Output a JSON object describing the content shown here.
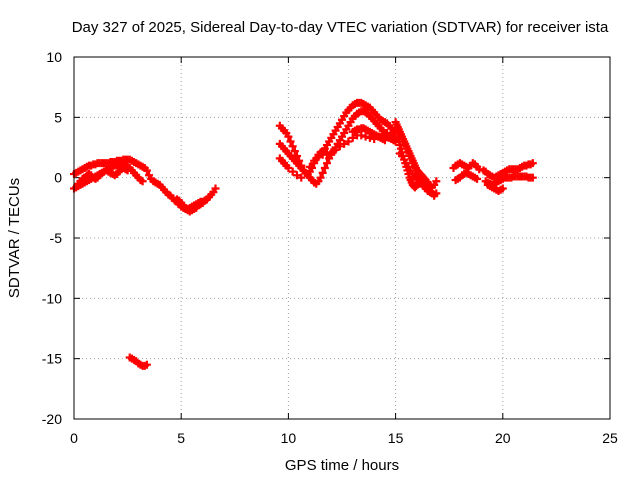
{
  "chart_data": {
    "type": "scatter",
    "title": "Day 327 of 2025, Sidereal Day-to-day VTEC variation (SDTVAR) for receiver ista",
    "xlabel": "GPS time / hours",
    "ylabel": "SDTVAR / TECUs",
    "xlim": [
      0,
      25
    ],
    "ylim": [
      -20,
      10
    ],
    "xticks": [
      "0",
      "5",
      "10",
      "15",
      "20",
      "25"
    ],
    "yticks": [
      "10",
      "5",
      "0",
      "-5",
      "-10",
      "-15",
      "-20"
    ],
    "grid": true,
    "marker": "+",
    "color": "#ff0000",
    "series": [
      {
        "x": [
          0.0,
          0.1,
          0.2,
          0.3,
          0.4,
          0.5,
          0.6,
          0.7,
          0.8,
          0.9,
          1.0,
          1.1,
          1.2,
          1.3,
          1.4,
          1.5,
          1.6,
          1.7,
          1.8,
          1.9,
          2.0,
          2.1,
          2.2,
          2.3,
          2.4,
          2.5,
          2.6,
          2.7,
          2.8,
          2.9,
          3.0,
          3.1,
          3.2,
          3.3,
          3.4,
          0.0,
          0.1,
          0.2,
          0.3,
          0.4,
          0.5,
          0.6,
          0.7,
          0.8,
          0.9,
          1.0,
          1.1,
          1.2,
          1.3,
          1.4,
          1.5,
          1.6,
          1.7,
          1.8,
          1.9,
          2.0,
          2.1,
          2.2,
          2.3,
          2.4,
          2.5,
          2.6,
          2.7,
          2.8,
          2.9,
          3.0,
          3.1,
          3.2,
          0.2,
          0.3,
          0.4,
          0.5,
          0.6,
          0.7,
          0.8,
          0.9,
          1.0,
          1.1,
          1.2,
          1.3,
          1.4,
          1.5,
          1.6,
          1.7,
          1.8,
          1.9,
          2.0,
          2.1,
          2.2,
          2.3,
          2.4,
          2.5,
          3.5,
          3.6,
          3.7,
          3.8,
          3.9,
          4.0,
          4.1,
          4.2,
          4.3,
          4.4,
          4.5,
          4.6,
          4.7,
          4.8,
          4.9,
          5.0,
          5.1,
          5.2,
          5.3,
          5.4,
          5.5,
          5.6,
          5.7,
          5.8,
          5.9,
          6.0,
          6.1,
          6.2,
          6.3,
          6.4,
          6.5,
          6.6,
          4.8,
          4.9,
          5.0,
          5.1,
          5.2,
          5.3,
          5.4,
          5.5,
          5.6,
          5.7,
          5.8,
          5.9,
          6.0,
          6.1,
          6.2,
          2.6,
          2.7,
          2.8,
          2.9,
          3.0,
          3.1,
          3.2,
          3.3,
          3.4
        ],
        "y": [
          0.3,
          0.4,
          0.5,
          0.6,
          0.7,
          0.8,
          0.9,
          1.0,
          1.0,
          1.1,
          1.1,
          1.2,
          1.2,
          1.2,
          1.2,
          1.2,
          1.2,
          1.3,
          1.3,
          1.3,
          1.4,
          1.4,
          1.4,
          1.5,
          1.5,
          1.5,
          1.5,
          1.4,
          1.3,
          1.2,
          1.1,
          1.0,
          0.9,
          0.8,
          0.6,
          -0.9,
          -0.8,
          -0.7,
          -0.6,
          -0.5,
          -0.4,
          -0.3,
          -0.2,
          -0.1,
          0.0,
          0.1,
          0.2,
          0.3,
          0.4,
          0.5,
          0.6,
          0.7,
          0.8,
          0.9,
          1.0,
          1.0,
          1.1,
          1.1,
          1.1,
          1.0,
          0.9,
          0.8,
          0.6,
          0.4,
          0.2,
          0.0,
          -0.2,
          -0.3,
          -0.5,
          -0.3,
          -0.1,
          0.0,
          0.2,
          0.3,
          0.2,
          0.0,
          -0.1,
          0.0,
          0.2,
          0.4,
          0.5,
          0.6,
          0.5,
          0.4,
          0.3,
          0.2,
          0.3,
          0.5,
          0.7,
          0.8,
          0.7,
          0.6,
          0.2,
          -0.1,
          -0.3,
          -0.4,
          -0.5,
          -0.6,
          -0.8,
          -1.0,
          -1.2,
          -1.4,
          -1.5,
          -1.7,
          -1.9,
          -2.0,
          -2.2,
          -2.4,
          -2.5,
          -2.6,
          -2.6,
          -2.5,
          -2.4,
          -2.3,
          -2.2,
          -2.1,
          -2.0,
          -2.0,
          -1.9,
          -1.8,
          -1.6,
          -1.4,
          -1.2,
          -0.9,
          -1.8,
          -1.9,
          -2.1,
          -2.3,
          -2.5,
          -2.7,
          -2.8,
          -2.7,
          -2.6,
          -2.5,
          -2.3,
          -2.2,
          -2.1,
          -1.9,
          -1.8,
          -14.9,
          -15.0,
          -15.1,
          -15.2,
          -15.4,
          -15.5,
          -15.6,
          -15.6,
          -15.5
        ]
      },
      {
        "x": [
          9.6,
          9.7,
          9.8,
          9.9,
          10.0,
          10.1,
          10.2,
          10.3,
          10.4,
          10.5,
          10.6,
          10.7,
          10.8,
          10.9,
          11.0,
          11.1,
          11.2,
          11.3,
          11.4,
          11.5,
          11.6,
          11.7,
          11.8,
          11.9,
          12.0,
          12.1,
          12.2,
          12.3,
          12.4,
          12.5,
          12.6,
          12.7,
          12.8,
          12.9,
          13.0,
          13.1,
          13.2,
          13.3,
          13.4,
          13.5,
          13.6,
          13.7,
          13.8,
          13.9,
          14.0,
          14.1,
          14.2,
          14.3,
          14.4,
          14.5,
          14.6,
          14.7,
          14.8,
          14.9,
          15.0,
          9.6,
          9.7,
          9.8,
          9.9,
          10.0,
          10.1,
          10.2,
          10.3,
          10.4,
          10.5,
          10.6,
          10.7,
          10.8,
          10.9,
          11.0,
          11.1,
          11.2,
          11.3,
          11.4,
          11.5,
          11.6,
          11.7,
          11.8,
          11.9,
          12.0,
          12.1,
          12.2,
          12.3,
          12.4,
          12.5,
          12.6,
          12.7,
          12.8,
          12.9,
          13.0,
          13.1,
          13.2,
          13.3,
          13.4,
          13.5,
          13.6,
          13.7,
          13.8,
          13.9,
          14.0,
          14.1,
          14.2,
          14.3,
          14.4,
          14.5,
          14.6,
          14.7,
          14.8,
          14.9,
          15.0,
          9.6,
          9.7,
          9.8,
          9.9,
          10.0,
          10.2,
          10.4,
          10.6,
          10.8,
          11.0,
          11.2,
          11.4,
          11.6,
          11.8,
          12.0,
          12.2,
          12.4,
          12.6,
          12.8,
          13.0,
          13.2,
          13.4,
          13.6,
          13.8,
          14.0,
          14.2,
          14.4,
          14.6,
          14.8,
          15.0,
          13.0,
          13.1,
          13.2,
          13.3,
          13.4,
          13.5,
          13.6,
          13.7,
          13.8,
          13.9,
          14.0,
          14.1,
          14.2,
          14.3,
          14.4,
          14.5
        ],
        "y": [
          4.3,
          4.1,
          3.9,
          3.7,
          3.4,
          3.0,
          2.6,
          2.2,
          1.8,
          1.4,
          1.0,
          0.6,
          0.4,
          0.3,
          0.5,
          0.8,
          1.2,
          1.6,
          1.9,
          2.1,
          2.2,
          2.4,
          2.7,
          3.0,
          3.3,
          3.6,
          3.9,
          4.2,
          4.5,
          4.8,
          5.1,
          5.4,
          5.6,
          5.8,
          6.0,
          6.1,
          6.2,
          6.2,
          6.2,
          6.1,
          6.0,
          5.9,
          5.8,
          5.6,
          5.4,
          5.2,
          5.0,
          4.8,
          4.7,
          4.6,
          4.5,
          4.3,
          4.1,
          3.9,
          3.7,
          2.8,
          2.6,
          2.4,
          2.2,
          2.0,
          1.8,
          1.6,
          1.4,
          1.2,
          1.0,
          0.8,
          0.6,
          0.4,
          0.2,
          0.0,
          -0.2,
          -0.4,
          -0.5,
          -0.3,
          0.0,
          0.4,
          0.8,
          1.2,
          1.6,
          1.9,
          2.2,
          2.5,
          2.8,
          3.1,
          3.4,
          3.7,
          4.0,
          4.3,
          4.6,
          4.9,
          5.1,
          5.3,
          5.4,
          5.5,
          5.5,
          5.4,
          5.3,
          5.1,
          4.9,
          4.7,
          4.5,
          4.3,
          4.1,
          3.9,
          3.7,
          3.5,
          3.3,
          3.2,
          3.1,
          3.0,
          1.6,
          1.4,
          1.2,
          1.0,
          0.8,
          0.5,
          0.2,
          0.0,
          0.4,
          0.9,
          1.4,
          1.7,
          1.9,
          2.0,
          2.1,
          2.3,
          2.6,
          2.8,
          3.0,
          3.3,
          3.5,
          3.5,
          3.4,
          3.3,
          3.2,
          3.4,
          3.6,
          3.7,
          3.5,
          3.3,
          3.8,
          3.9,
          4.0,
          4.0,
          4.1,
          4.1,
          4.0,
          3.9,
          3.8,
          3.7,
          3.6,
          3.5,
          3.4,
          3.3,
          3.2,
          3.1
        ]
      },
      {
        "x": [
          15.0,
          15.05,
          15.1,
          15.15,
          15.2,
          15.25,
          15.3,
          15.35,
          15.4,
          15.45,
          15.5,
          15.55,
          15.6,
          15.65,
          15.7,
          15.75,
          15.8,
          15.85,
          15.9,
          15.95,
          16.0,
          16.05,
          16.1,
          16.15,
          16.2,
          16.25,
          16.3,
          16.35,
          16.4,
          16.5,
          16.6,
          16.7,
          16.8,
          16.9,
          15.1,
          15.15,
          15.2,
          15.25,
          15.3,
          15.35,
          15.4,
          15.45,
          15.5,
          15.55,
          15.6,
          15.65,
          15.7,
          15.75,
          15.8,
          15.85,
          15.9,
          15.95,
          16.0,
          16.1,
          16.2,
          16.3,
          16.4,
          16.5,
          16.6,
          16.7,
          16.8,
          16.9,
          15.2,
          15.3,
          15.4,
          15.5,
          15.6,
          15.7,
          15.8,
          15.9,
          16.0,
          16.1,
          16.2,
          16.3,
          16.4,
          16.5,
          16.6,
          16.7,
          16.8
        ],
        "y": [
          4.6,
          4.4,
          4.2,
          4.0,
          3.8,
          3.6,
          3.4,
          3.2,
          3.0,
          2.8,
          2.6,
          2.4,
          2.2,
          2.0,
          1.8,
          1.6,
          1.4,
          1.2,
          1.0,
          0.8,
          0.6,
          0.5,
          0.4,
          0.3,
          0.2,
          0.1,
          0.0,
          -0.1,
          -0.2,
          -0.4,
          -0.6,
          -0.8,
          -0.6,
          -0.3,
          3.2,
          3.0,
          2.7,
          2.4,
          2.1,
          1.8,
          1.5,
          1.2,
          0.9,
          0.6,
          0.3,
          0.0,
          -0.2,
          -0.4,
          -0.6,
          -0.7,
          -0.8,
          -0.7,
          -0.6,
          -0.5,
          -0.4,
          -0.5,
          -0.7,
          -0.9,
          -1.1,
          -1.3,
          -1.4,
          -1.3,
          2.0,
          1.8,
          1.5,
          1.2,
          0.9,
          0.6,
          0.3,
          0.1,
          -0.1,
          -0.3,
          -0.5,
          -0.7,
          -0.9,
          -1.1,
          -1.2,
          -1.3,
          -1.5
        ]
      },
      {
        "x": [
          17.7,
          17.8,
          17.9,
          18.0,
          18.1,
          18.2,
          18.3,
          18.4,
          18.5,
          18.6,
          18.7,
          18.8,
          18.9,
          17.8,
          17.9,
          18.0,
          18.1,
          18.2,
          18.3,
          18.4,
          18.5,
          18.6,
          18.7,
          18.8,
          19.1,
          19.2,
          19.3,
          19.4,
          19.5,
          19.6,
          19.7,
          19.8,
          19.9,
          20.0,
          20.1,
          20.2,
          20.3,
          20.4,
          20.5,
          20.6,
          20.7,
          20.8,
          20.9,
          21.0,
          21.1,
          21.2,
          21.3,
          21.4,
          19.2,
          19.3,
          19.4,
          19.5,
          19.6,
          19.7,
          19.8,
          19.9,
          20.0,
          20.1,
          20.2,
          20.3,
          20.4,
          20.5,
          20.6,
          20.7,
          20.8,
          20.9,
          21.0,
          21.1,
          21.2,
          21.3,
          21.4,
          19.3,
          19.4,
          19.5,
          19.6,
          19.7,
          19.8,
          19.9,
          20.0
        ],
        "y": [
          0.8,
          1.0,
          1.1,
          1.2,
          1.1,
          1.0,
          0.9,
          0.8,
          1.0,
          1.2,
          1.1,
          0.9,
          0.7,
          -0.2,
          -0.1,
          0.0,
          0.2,
          0.3,
          0.4,
          0.3,
          0.2,
          0.1,
          0.0,
          -0.1,
          0.6,
          0.5,
          0.3,
          0.2,
          0.1,
          0.0,
          0.1,
          0.2,
          0.3,
          0.4,
          0.5,
          0.6,
          0.7,
          0.7,
          0.7,
          0.7,
          0.7,
          0.8,
          0.9,
          1.0,
          1.0,
          1.1,
          1.1,
          1.2,
          -0.3,
          -0.4,
          -0.5,
          -0.6,
          -0.5,
          -0.4,
          -0.3,
          -0.2,
          -0.1,
          0.0,
          0.0,
          0.0,
          0.0,
          0.1,
          0.1,
          0.1,
          0.1,
          0.1,
          0.1,
          0.1,
          0.0,
          0.0,
          0.0,
          -0.6,
          -0.7,
          -0.8,
          -0.9,
          -1.0,
          -1.1,
          -1.0,
          -0.9
        ]
      }
    ]
  }
}
